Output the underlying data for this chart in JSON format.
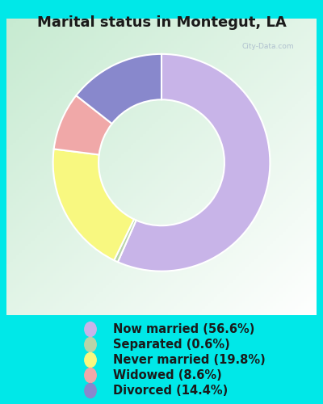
{
  "title": "Marital status in Montegut, LA",
  "slices": [
    56.6,
    0.6,
    19.8,
    8.6,
    14.4
  ],
  "labels": [
    "Now married (56.6%)",
    "Separated (0.6%)",
    "Never married (19.8%)",
    "Widowed (8.6%)",
    "Divorced (14.4%)"
  ],
  "colors": [
    "#c8b4e8",
    "#b8d4a8",
    "#f8f880",
    "#f0a8a8",
    "#8888cc"
  ],
  "bg_cyan": "#00e8e8",
  "chart_bg_color1": "#d0ecd8",
  "chart_bg_color2": "#f0f8f0",
  "title_fontsize": 13,
  "legend_fontsize": 10.5,
  "watermark": "City-Data.com",
  "donut_width": 0.42
}
